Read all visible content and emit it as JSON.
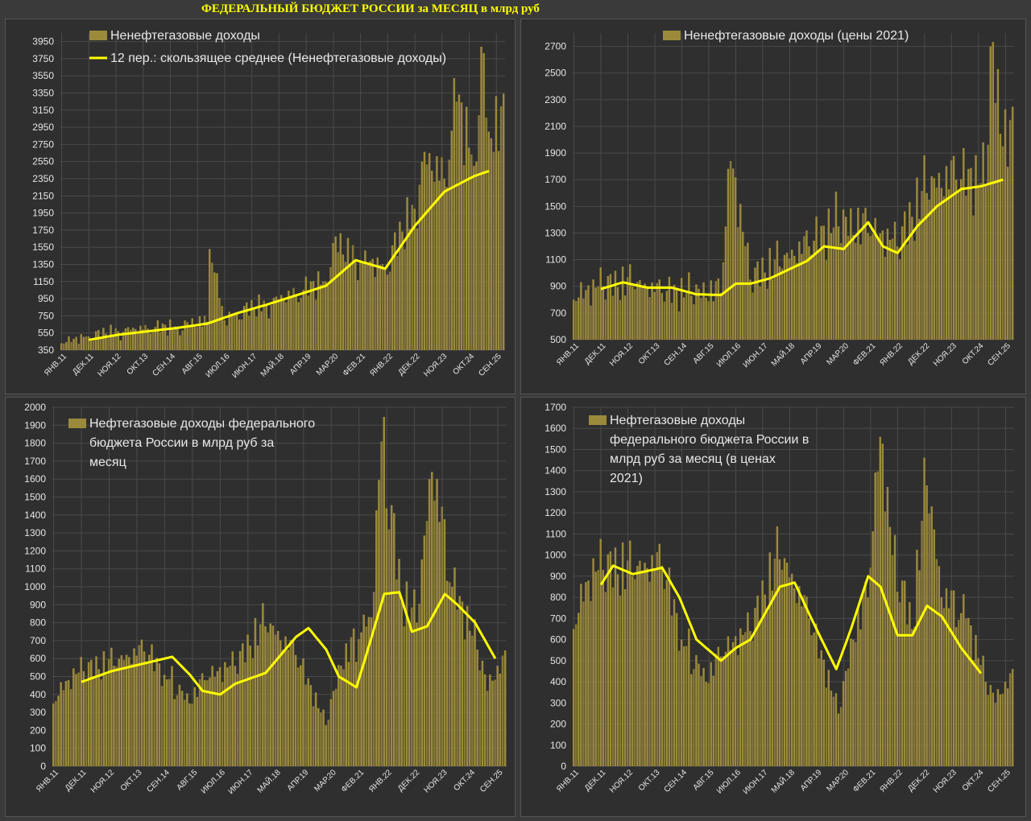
{
  "page_title": "ФЕДЕРАЛЬНЫЙ БЮДЖЕТ РОССИИ за МЕСЯЦ в млрд руб",
  "colors": {
    "bar": "#9c8a3c",
    "line": "#ffff00",
    "grid": "#4a4a4a"
  },
  "x_labels": [
    "ЯНВ.11",
    "ДЕК.11",
    "НОЯ.12",
    "ОКТ.13",
    "СЕН.14",
    "АВГ.15",
    "ИЮЛ.16",
    "ИЮН.17",
    "МАЙ.18",
    "АПР.19",
    "МАР.20",
    "ФЕВ.21",
    "ЯНВ.22",
    "ДЕК.22",
    "НОЯ.23",
    "ОКТ.24",
    "СЕН.25"
  ],
  "chart_data": [
    {
      "type": "bar",
      "title": "",
      "series": [
        {
          "name": "Ненефтегазовые доходы",
          "type": "bar",
          "anchors": [
            [
              0,
              430
            ],
            [
              11,
              510
            ],
            [
              23,
              570
            ],
            [
              35,
              600
            ],
            [
              47,
              620
            ],
            [
              59,
              680
            ],
            [
              60,
              1530
            ],
            [
              66,
              700
            ],
            [
              71,
              780
            ],
            [
              83,
              880
            ],
            [
              95,
              1000
            ],
            [
              107,
              1150
            ],
            [
              110,
              1600
            ],
            [
              119,
              1400
            ],
            [
              131,
              1300
            ],
            [
              143,
              2000
            ],
            [
              146,
              2550
            ],
            [
              155,
              2350
            ],
            [
              160,
              3250
            ],
            [
              167,
              2500
            ],
            [
              170,
              3890
            ],
            [
              173,
              2900
            ]
          ]
        },
        {
          "name": "12 пер.: скользящее среднее (Ненефтегазовые доходы)",
          "type": "line",
          "anchors": [
            [
              11,
              470
            ],
            [
              23,
              530
            ],
            [
              35,
              570
            ],
            [
              47,
              610
            ],
            [
              59,
              660
            ],
            [
              71,
              780
            ],
            [
              83,
              880
            ],
            [
              95,
              990
            ],
            [
              107,
              1100
            ],
            [
              119,
              1400
            ],
            [
              131,
              1300
            ],
            [
              143,
              1800
            ],
            [
              155,
              2200
            ],
            [
              167,
              2380
            ],
            [
              173,
              2440
            ]
          ]
        }
      ],
      "ylim": [
        350,
        4050
      ],
      "yticks": [
        350,
        550,
        750,
        950,
        1150,
        1350,
        1550,
        1750,
        1950,
        2150,
        2350,
        2550,
        2750,
        2950,
        3150,
        3350,
        3550,
        3750,
        3950
      ]
    },
    {
      "type": "bar",
      "title": "",
      "series": [
        {
          "name": "Ненефтегазовые доходы (цены 2021)",
          "type": "bar",
          "anchors": [
            [
              0,
              800
            ],
            [
              12,
              900
            ],
            [
              24,
              900
            ],
            [
              36,
              850
            ],
            [
              48,
              830
            ],
            [
              60,
              850
            ],
            [
              64,
              1840
            ],
            [
              72,
              950
            ],
            [
              84,
              1050
            ],
            [
              96,
              1200
            ],
            [
              108,
              1350
            ],
            [
              120,
              1300
            ],
            [
              132,
              1200
            ],
            [
              144,
              1600
            ],
            [
              156,
              1700
            ],
            [
              168,
              1650
            ],
            [
              170,
              2700
            ],
            [
              175,
              1950
            ]
          ]
        },
        {
          "name": "",
          "type": "line",
          "anchors": [
            [
              11,
              880
            ],
            [
              20,
              930
            ],
            [
              30,
              890
            ],
            [
              40,
              890
            ],
            [
              50,
              840
            ],
            [
              60,
              835
            ],
            [
              66,
              920
            ],
            [
              72,
              920
            ],
            [
              80,
              960
            ],
            [
              95,
              1090
            ],
            [
              102,
              1200
            ],
            [
              110,
              1180
            ],
            [
              120,
              1380
            ],
            [
              126,
              1200
            ],
            [
              132,
              1150
            ],
            [
              140,
              1350
            ],
            [
              148,
              1500
            ],
            [
              158,
              1630
            ],
            [
              166,
              1650
            ],
            [
              175,
              1700
            ]
          ]
        }
      ],
      "ylim": [
        500,
        2800
      ],
      "yticks": [
        500,
        700,
        900,
        1100,
        1300,
        1500,
        1700,
        1900,
        2100,
        2300,
        2500,
        2700
      ]
    },
    {
      "type": "bar",
      "title": "",
      "series": [
        {
          "name": "Нефтегазовые доходы федерального бюджета России в млрд руб за месяц",
          "type": "bar",
          "anchors": [
            [
              0,
              350
            ],
            [
              6,
              480
            ],
            [
              12,
              530
            ],
            [
              24,
              560
            ],
            [
              36,
              640
            ],
            [
              44,
              510
            ],
            [
              54,
              350
            ],
            [
              60,
              480
            ],
            [
              72,
              560
            ],
            [
              84,
              780
            ],
            [
              96,
              620
            ],
            [
              108,
              230
            ],
            [
              114,
              560
            ],
            [
              126,
              830
            ],
            [
              130,
              1810
            ],
            [
              138,
              920
            ],
            [
              144,
              800
            ],
            [
              150,
              1640
            ],
            [
              158,
              1000
            ],
            [
              168,
              650
            ],
            [
              172,
              420
            ],
            [
              176,
              560
            ]
          ]
        },
        {
          "name": "",
          "type": "line",
          "anchors": [
            [
              11,
              470
            ],
            [
              23,
              530
            ],
            [
              35,
              570
            ],
            [
              47,
              610
            ],
            [
              54,
              510
            ],
            [
              59,
              420
            ],
            [
              66,
              400
            ],
            [
              72,
              460
            ],
            [
              84,
              520
            ],
            [
              96,
              720
            ],
            [
              101,
              770
            ],
            [
              108,
              650
            ],
            [
              113,
              500
            ],
            [
              120,
              440
            ],
            [
              126,
              720
            ],
            [
              131,
              960
            ],
            [
              137,
              970
            ],
            [
              142,
              750
            ],
            [
              148,
              780
            ],
            [
              155,
              960
            ],
            [
              160,
              900
            ],
            [
              167,
              800
            ],
            [
              175,
              600
            ]
          ]
        }
      ],
      "ylim": [
        0,
        2000
      ],
      "yticks": [
        0,
        100,
        200,
        300,
        400,
        500,
        600,
        700,
        800,
        900,
        1000,
        1100,
        1200,
        1300,
        1400,
        1500,
        1600,
        1700,
        1800,
        1900,
        2000
      ]
    },
    {
      "type": "bar",
      "title": "",
      "series": [
        {
          "name": "Нефтегазовые доходы федерального бюджета России в млрд руб за месяц (в ценах 2021)",
          "type": "bar",
          "anchors": [
            [
              0,
              650
            ],
            [
              6,
              880
            ],
            [
              12,
              930
            ],
            [
              24,
              900
            ],
            [
              36,
              950
            ],
            [
              44,
              600
            ],
            [
              54,
              400
            ],
            [
              60,
              520
            ],
            [
              72,
              640
            ],
            [
              84,
              980
            ],
            [
              96,
              700
            ],
            [
              108,
              250
            ],
            [
              114,
              600
            ],
            [
              120,
              800
            ],
            [
              125,
              1560
            ],
            [
              130,
              1000
            ],
            [
              138,
              650
            ],
            [
              144,
              1330
            ],
            [
              150,
              800
            ],
            [
              160,
              700
            ],
            [
              168,
              400
            ],
            [
              172,
              300
            ],
            [
              176,
              400
            ]
          ]
        },
        {
          "name": "",
          "type": "line",
          "anchors": [
            [
              11,
              860
            ],
            [
              16,
              950
            ],
            [
              24,
              910
            ],
            [
              36,
              940
            ],
            [
              43,
              800
            ],
            [
              50,
              600
            ],
            [
              60,
              500
            ],
            [
              66,
              560
            ],
            [
              72,
              600
            ],
            [
              84,
              850
            ],
            [
              90,
              870
            ],
            [
              96,
              720
            ],
            [
              101,
              600
            ],
            [
              107,
              460
            ],
            [
              113,
              650
            ],
            [
              120,
              900
            ],
            [
              125,
              850
            ],
            [
              132,
              620
            ],
            [
              138,
              620
            ],
            [
              144,
              760
            ],
            [
              150,
              710
            ],
            [
              158,
              560
            ],
            [
              166,
              440
            ]
          ]
        }
      ],
      "ylim": [
        0,
        1700
      ],
      "yticks": [
        0,
        100,
        200,
        300,
        400,
        500,
        600,
        700,
        800,
        900,
        1000,
        1100,
        1200,
        1300,
        1400,
        1500,
        1600,
        1700
      ]
    }
  ]
}
